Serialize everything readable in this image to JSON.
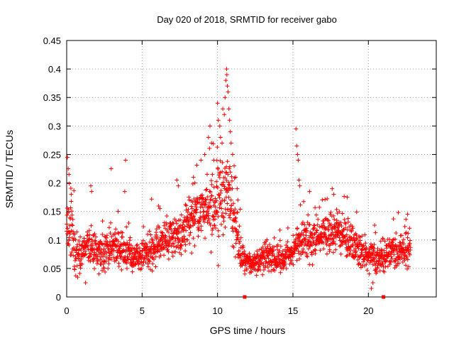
{
  "chart_data": {
    "type": "scatter",
    "title": "Day 020 of 2018, SRMTID for receiver gabo",
    "xlabel": "GPS time / hours",
    "ylabel": "SRMTID / TECUs",
    "xlim": [
      0,
      24.5
    ],
    "ylim": [
      0,
      0.45
    ],
    "grid": true,
    "marker": "+",
    "series_color": "#ff0000",
    "xticks": [
      0,
      5,
      10,
      15,
      20
    ],
    "xtick_labels": [
      "0",
      "5",
      "10",
      "15",
      "20"
    ],
    "yticks": [
      0,
      0.05,
      0.1,
      0.15,
      0.2,
      0.25,
      0.3,
      0.35,
      0.4,
      0.45
    ],
    "ytick_labels": [
      "0",
      "0.05",
      "0.1",
      "0.15",
      "0.2",
      "0.25",
      "0.3",
      "0.35",
      "0.4",
      "0.45"
    ],
    "baseline_markers": [
      11.8,
      21.0
    ],
    "trend": {
      "x": [
        0,
        0.3,
        0.6,
        1,
        1.5,
        2,
        2.5,
        3,
        3.5,
        4,
        4.5,
        5,
        5.5,
        6,
        6.5,
        7,
        7.5,
        8,
        8.5,
        9,
        9.5,
        10,
        10.5,
        11,
        11.5,
        12,
        12.5,
        13,
        13.5,
        14,
        14.5,
        15,
        15.5,
        16,
        16.5,
        17,
        17.5,
        18,
        18.5,
        19,
        19.5,
        20,
        20.5,
        21,
        21.5,
        22,
        22.5,
        22.8
      ],
      "y": [
        0.13,
        0.11,
        0.07,
        0.08,
        0.09,
        0.08,
        0.08,
        0.09,
        0.08,
        0.08,
        0.07,
        0.07,
        0.08,
        0.09,
        0.1,
        0.1,
        0.11,
        0.12,
        0.13,
        0.15,
        0.15,
        0.17,
        0.19,
        0.16,
        0.08,
        0.06,
        0.06,
        0.07,
        0.07,
        0.07,
        0.07,
        0.08,
        0.1,
        0.1,
        0.1,
        0.11,
        0.11,
        0.11,
        0.1,
        0.09,
        0.08,
        0.07,
        0.07,
        0.07,
        0.08,
        0.08,
        0.08,
        0.09
      ],
      "spread": [
        0.04,
        0.05,
        0.03,
        0.025,
        0.03,
        0.03,
        0.03,
        0.03,
        0.03,
        0.03,
        0.025,
        0.025,
        0.03,
        0.03,
        0.03,
        0.03,
        0.03,
        0.035,
        0.04,
        0.045,
        0.05,
        0.06,
        0.07,
        0.06,
        0.03,
        0.02,
        0.02,
        0.025,
        0.025,
        0.025,
        0.025,
        0.025,
        0.03,
        0.03,
        0.03,
        0.035,
        0.03,
        0.03,
        0.03,
        0.03,
        0.025,
        0.025,
        0.025,
        0.025,
        0.025,
        0.025,
        0.025,
        0.025
      ]
    },
    "highlighted_points": [
      {
        "x": 0.05,
        "y": 0.245
      },
      {
        "x": 0.1,
        "y": 0.225
      },
      {
        "x": 0.15,
        "y": 0.215
      },
      {
        "x": 0.3,
        "y": 0.18
      },
      {
        "x": 1.6,
        "y": 0.195
      },
      {
        "x": 1.65,
        "y": 0.185
      },
      {
        "x": 2.95,
        "y": 0.225
      },
      {
        "x": 3.9,
        "y": 0.24
      },
      {
        "x": 3.85,
        "y": 0.185
      },
      {
        "x": 4.95,
        "y": 0.05
      },
      {
        "x": 1.25,
        "y": 0.025
      },
      {
        "x": 7.3,
        "y": 0.205
      },
      {
        "x": 7.4,
        "y": 0.195
      },
      {
        "x": 8.1,
        "y": 0.175
      },
      {
        "x": 8.4,
        "y": 0.21
      },
      {
        "x": 8.5,
        "y": 0.2
      },
      {
        "x": 8.9,
        "y": 0.24
      },
      {
        "x": 9.15,
        "y": 0.25
      },
      {
        "x": 9.4,
        "y": 0.28
      },
      {
        "x": 9.5,
        "y": 0.3
      },
      {
        "x": 9.6,
        "y": 0.27
      },
      {
        "x": 9.75,
        "y": 0.24
      },
      {
        "x": 10.0,
        "y": 0.34
      },
      {
        "x": 10.05,
        "y": 0.31
      },
      {
        "x": 10.15,
        "y": 0.3
      },
      {
        "x": 10.2,
        "y": 0.28
      },
      {
        "x": 10.3,
        "y": 0.27
      },
      {
        "x": 10.35,
        "y": 0.33
      },
      {
        "x": 10.45,
        "y": 0.32
      },
      {
        "x": 10.5,
        "y": 0.35
      },
      {
        "x": 10.55,
        "y": 0.38
      },
      {
        "x": 10.6,
        "y": 0.4
      },
      {
        "x": 10.62,
        "y": 0.39
      },
      {
        "x": 10.65,
        "y": 0.37
      },
      {
        "x": 10.7,
        "y": 0.36
      },
      {
        "x": 10.75,
        "y": 0.33
      },
      {
        "x": 10.8,
        "y": 0.31
      },
      {
        "x": 10.85,
        "y": 0.29
      },
      {
        "x": 10.9,
        "y": 0.27
      },
      {
        "x": 11.0,
        "y": 0.25
      },
      {
        "x": 11.1,
        "y": 0.23
      },
      {
        "x": 11.2,
        "y": 0.21
      },
      {
        "x": 11.3,
        "y": 0.19
      },
      {
        "x": 11.35,
        "y": 0.17
      },
      {
        "x": 10.05,
        "y": 0.055
      },
      {
        "x": 15.2,
        "y": 0.295
      },
      {
        "x": 15.25,
        "y": 0.265
      },
      {
        "x": 15.3,
        "y": 0.25
      },
      {
        "x": 15.35,
        "y": 0.24
      },
      {
        "x": 15.4,
        "y": 0.205
      },
      {
        "x": 15.45,
        "y": 0.195
      },
      {
        "x": 16.1,
        "y": 0.185
      },
      {
        "x": 17.6,
        "y": 0.19
      },
      {
        "x": 17.7,
        "y": 0.18
      },
      {
        "x": 18.6,
        "y": 0.175
      },
      {
        "x": 20.2,
        "y": 0.015
      },
      {
        "x": 20.3,
        "y": 0.025
      },
      {
        "x": 22.6,
        "y": 0.145
      }
    ]
  }
}
